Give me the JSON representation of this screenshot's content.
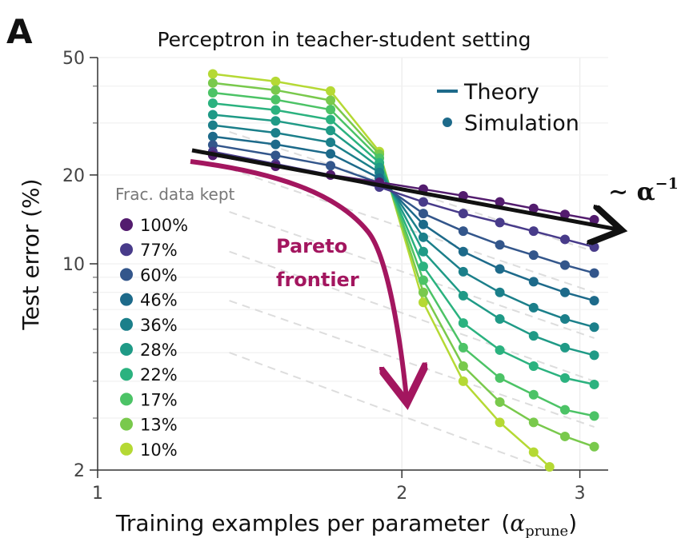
{
  "panel_letter": "A",
  "chart_data": {
    "type": "line",
    "title": "Perceptron in teacher-student setting",
    "xlabel": "Training examples per parameter",
    "xlabel_symbol": "α",
    "xlabel_subscript": "prune",
    "ylabel": "Test error (%)",
    "xscale": "log",
    "yscale": "log",
    "xlim": [
      1.0,
      3.2
    ],
    "ylim": [
      2,
      50
    ],
    "xticks": [
      1,
      2,
      3
    ],
    "yticks": [
      2,
      10,
      20,
      50
    ],
    "grid": true,
    "legend_title": "Frac. data kept",
    "legend_position": "left",
    "theory_legend": [
      {
        "label": "Theory",
        "marker": "line",
        "color": "#1d6a8a"
      },
      {
        "label": "Simulation",
        "marker": "dot",
        "color": "#1d6a8a"
      }
    ],
    "series": [
      {
        "name": "100%",
        "color": "#531c6e",
        "x": [
          1.3,
          1.5,
          1.7,
          1.9,
          2.1,
          2.3,
          2.5,
          2.7,
          2.9,
          3.1
        ],
        "y": [
          23.3,
          21.4,
          20.0,
          18.9,
          17.9,
          17.0,
          16.2,
          15.4,
          14.7,
          14.1
        ]
      },
      {
        "name": "77%",
        "color": "#483b8a",
        "x": [
          1.3,
          1.5,
          1.7,
          1.9,
          2.1,
          2.3,
          2.5,
          2.7,
          2.9,
          3.1
        ],
        "y": [
          24.0,
          21.8,
          20.0,
          18.2,
          16.2,
          14.8,
          13.8,
          12.9,
          12.1,
          11.4
        ]
      },
      {
        "name": "60%",
        "color": "#33568b",
        "x": [
          1.3,
          1.5,
          1.7,
          1.9,
          2.1,
          2.3,
          2.5,
          2.7,
          2.9,
          3.1
        ],
        "y": [
          25.3,
          23.3,
          21.5,
          18.8,
          14.8,
          12.9,
          11.6,
          10.7,
          9.9,
          9.3
        ]
      },
      {
        "name": "46%",
        "color": "#1d6a8a",
        "x": [
          1.3,
          1.5,
          1.7,
          1.9,
          2.1,
          2.3,
          2.5,
          2.7,
          2.9,
          3.1
        ],
        "y": [
          27.0,
          25.4,
          23.6,
          19.5,
          13.6,
          11.0,
          9.6,
          8.7,
          8.0,
          7.5
        ]
      },
      {
        "name": "36%",
        "color": "#1b7f8a",
        "x": [
          1.3,
          1.5,
          1.7,
          1.9,
          2.1,
          2.3,
          2.5,
          2.7,
          2.9,
          3.1
        ],
        "y": [
          29.5,
          27.8,
          25.8,
          20.4,
          12.3,
          9.4,
          8.0,
          7.1,
          6.5,
          6.1
        ]
      },
      {
        "name": "28%",
        "color": "#1f9a86",
        "x": [
          1.3,
          1.5,
          1.7,
          1.9,
          2.1,
          2.3,
          2.5,
          2.7,
          2.9,
          3.1
        ],
        "y": [
          32.0,
          30.5,
          28.3,
          21.2,
          11.0,
          7.8,
          6.5,
          5.7,
          5.2,
          4.9
        ]
      },
      {
        "name": "22%",
        "color": "#2bb27f",
        "x": [
          1.3,
          1.5,
          1.7,
          1.9,
          2.1,
          2.3,
          2.5,
          2.7,
          2.9,
          3.1
        ],
        "y": [
          35.0,
          33.2,
          30.8,
          22.0,
          9.8,
          6.3,
          5.1,
          4.5,
          4.1,
          3.9
        ]
      },
      {
        "name": "17%",
        "color": "#4cc366",
        "x": [
          1.3,
          1.5,
          1.7,
          1.9,
          2.1,
          2.3,
          2.5,
          2.7,
          2.9,
          3.1
        ],
        "y": [
          38.0,
          36.0,
          33.3,
          22.8,
          8.8,
          5.2,
          4.1,
          3.6,
          3.2,
          3.05
        ]
      },
      {
        "name": "13%",
        "color": "#79c94c",
        "x": [
          1.3,
          1.5,
          1.7,
          1.9,
          2.1,
          2.3,
          2.5,
          2.7,
          2.9,
          3.1
        ],
        "y": [
          41.0,
          38.8,
          35.8,
          23.5,
          8.0,
          4.5,
          3.4,
          2.9,
          2.6,
          2.4
        ]
      },
      {
        "name": "10%",
        "color": "#b5d934",
        "x": [
          1.3,
          1.5,
          1.7,
          1.9,
          2.1,
          2.3,
          2.5,
          2.7,
          2.8
        ],
        "y": [
          44.0,
          41.5,
          38.5,
          24.0,
          7.4,
          4.0,
          2.9,
          2.3,
          2.05
        ]
      }
    ],
    "annotations": [
      {
        "text": "Pareto",
        "color": "#a3165f"
      },
      {
        "text": "frontier",
        "color": "#a3165f"
      },
      {
        "text": "∼ α",
        "superscript": "−1",
        "color": "#111111"
      }
    ]
  }
}
